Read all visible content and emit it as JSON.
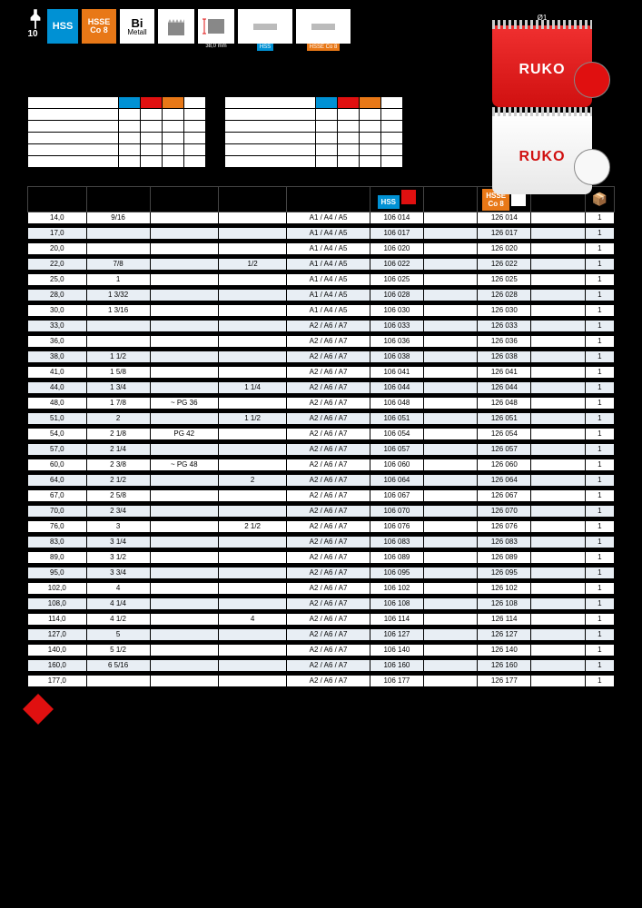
{
  "page_number": "10",
  "badges": {
    "hss": "HSS",
    "hsse_l1": "HSSE",
    "hsse_l2": "Co 8",
    "bi_l1": "Bi",
    "bi_l2": "Metall",
    "depth": "38,0 mm"
  },
  "product": {
    "brand": "RUKO",
    "dim_label": "Ø1"
  },
  "headers": {
    "hss": "HSS",
    "hsse_l1": "HSSE",
    "hsse_l2": "Co 8"
  },
  "colors": {
    "hss_blue": "#0091d4",
    "hsse_orange": "#e87817",
    "ruko_red": "#e01010",
    "row_alt": "#e8eef4",
    "black": "#000000",
    "white": "#ffffff"
  },
  "rows": [
    {
      "mm": "14,0",
      "inch": "9/16",
      "pg": "",
      "iso": "",
      "arbor": "A1 / A4 / A5",
      "art1": "106 014",
      "art2": "126 014",
      "pkg": "1"
    },
    {
      "mm": "17,0",
      "inch": "",
      "pg": "",
      "iso": "",
      "arbor": "A1 / A4 / A5",
      "art1": "106 017",
      "art2": "126 017",
      "pkg": "1"
    },
    {
      "mm": "20,0",
      "inch": "",
      "pg": "",
      "iso": "",
      "arbor": "A1 / A4 / A5",
      "art1": "106 020",
      "art2": "126 020",
      "pkg": "1"
    },
    {
      "mm": "22,0",
      "inch": "7/8",
      "pg": "",
      "iso": "1/2",
      "arbor": "A1 / A4 / A5",
      "art1": "106 022",
      "art2": "126 022",
      "pkg": "1"
    },
    {
      "mm": "25,0",
      "inch": "1",
      "pg": "",
      "iso": "",
      "arbor": "A1 / A4 / A5",
      "art1": "106 025",
      "art2": "126 025",
      "pkg": "1"
    },
    {
      "mm": "28,0",
      "inch": "1 3/32",
      "pg": "",
      "iso": "",
      "arbor": "A1 / A4 / A5",
      "art1": "106 028",
      "art2": "126 028",
      "pkg": "1"
    },
    {
      "mm": "30,0",
      "inch": "1 3/16",
      "pg": "",
      "iso": "",
      "arbor": "A1 / A4 / A5",
      "art1": "106 030",
      "art2": "126 030",
      "pkg": "1"
    },
    {
      "mm": "33,0",
      "inch": "",
      "pg": "",
      "iso": "",
      "arbor": "A2 / A6 / A7",
      "art1": "106 033",
      "art2": "126 033",
      "pkg": "1"
    },
    {
      "mm": "36,0",
      "inch": "",
      "pg": "",
      "iso": "",
      "arbor": "A2 / A6 / A7",
      "art1": "106 036",
      "art2": "126 036",
      "pkg": "1"
    },
    {
      "mm": "38,0",
      "inch": "1 1/2",
      "pg": "",
      "iso": "",
      "arbor": "A2 / A6 / A7",
      "art1": "106 038",
      "art2": "126 038",
      "pkg": "1"
    },
    {
      "mm": "41,0",
      "inch": "1 5/8",
      "pg": "",
      "iso": "",
      "arbor": "A2 / A6 / A7",
      "art1": "106 041",
      "art2": "126 041",
      "pkg": "1"
    },
    {
      "mm": "44,0",
      "inch": "1 3/4",
      "pg": "",
      "iso": "1 1/4",
      "arbor": "A2 / A6 / A7",
      "art1": "106 044",
      "art2": "126 044",
      "pkg": "1"
    },
    {
      "mm": "48,0",
      "inch": "1 7/8",
      "pg": "~ PG 36",
      "iso": "",
      "arbor": "A2 / A6 / A7",
      "art1": "106 048",
      "art2": "126 048",
      "pkg": "1"
    },
    {
      "mm": "51,0",
      "inch": "2",
      "pg": "",
      "iso": "1 1/2",
      "arbor": "A2 / A6 / A7",
      "art1": "106 051",
      "art2": "126 051",
      "pkg": "1"
    },
    {
      "mm": "54,0",
      "inch": "2 1/8",
      "pg": "PG 42",
      "iso": "",
      "arbor": "A2 / A6 / A7",
      "art1": "106 054",
      "art2": "126 054",
      "pkg": "1"
    },
    {
      "mm": "57,0",
      "inch": "2 1/4",
      "pg": "",
      "iso": "",
      "arbor": "A2 / A6 / A7",
      "art1": "106 057",
      "art2": "126 057",
      "pkg": "1"
    },
    {
      "mm": "60,0",
      "inch": "2 3/8",
      "pg": "~ PG 48",
      "iso": "",
      "arbor": "A2 / A6 / A7",
      "art1": "106 060",
      "art2": "126 060",
      "pkg": "1"
    },
    {
      "mm": "64,0",
      "inch": "2 1/2",
      "pg": "",
      "iso": "2",
      "arbor": "A2 / A6 / A7",
      "art1": "106 064",
      "art2": "126 064",
      "pkg": "1"
    },
    {
      "mm": "67,0",
      "inch": "2 5/8",
      "pg": "",
      "iso": "",
      "arbor": "A2 / A6 / A7",
      "art1": "106 067",
      "art2": "126 067",
      "pkg": "1"
    },
    {
      "mm": "70,0",
      "inch": "2 3/4",
      "pg": "",
      "iso": "",
      "arbor": "A2 / A6 / A7",
      "art1": "106 070",
      "art2": "126 070",
      "pkg": "1"
    },
    {
      "mm": "76,0",
      "inch": "3",
      "pg": "",
      "iso": "2 1/2",
      "arbor": "A2 / A6 / A7",
      "art1": "106 076",
      "art2": "126 076",
      "pkg": "1"
    },
    {
      "mm": "83,0",
      "inch": "3 1/4",
      "pg": "",
      "iso": "",
      "arbor": "A2 / A6 / A7",
      "art1": "106 083",
      "art2": "126 083",
      "pkg": "1"
    },
    {
      "mm": "89,0",
      "inch": "3 1/2",
      "pg": "",
      "iso": "",
      "arbor": "A2 / A6 / A7",
      "art1": "106 089",
      "art2": "126 089",
      "pkg": "1"
    },
    {
      "mm": "95,0",
      "inch": "3 3/4",
      "pg": "",
      "iso": "",
      "arbor": "A2 / A6 / A7",
      "art1": "106 095",
      "art2": "126 095",
      "pkg": "1"
    },
    {
      "mm": "102,0",
      "inch": "4",
      "pg": "",
      "iso": "",
      "arbor": "A2 / A6 / A7",
      "art1": "106 102",
      "art2": "126 102",
      "pkg": "1"
    },
    {
      "mm": "108,0",
      "inch": "4 1/4",
      "pg": "",
      "iso": "",
      "arbor": "A2 / A6 / A7",
      "art1": "106 108",
      "art2": "126 108",
      "pkg": "1"
    },
    {
      "mm": "114,0",
      "inch": "4 1/2",
      "pg": "",
      "iso": "4",
      "arbor": "A2 / A6 / A7",
      "art1": "106 114",
      "art2": "126 114",
      "pkg": "1"
    },
    {
      "mm": "127,0",
      "inch": "5",
      "pg": "",
      "iso": "",
      "arbor": "A2 / A6 / A7",
      "art1": "106 127",
      "art2": "126 127",
      "pkg": "1"
    },
    {
      "mm": "140,0",
      "inch": "5 1/2",
      "pg": "",
      "iso": "",
      "arbor": "A2 / A6 / A7",
      "art1": "106 140",
      "art2": "126 140",
      "pkg": "1"
    },
    {
      "mm": "160,0",
      "inch": "6 5/16",
      "pg": "",
      "iso": "",
      "arbor": "A2 / A6 / A7",
      "art1": "106 160",
      "art2": "126 160",
      "pkg": "1"
    },
    {
      "mm": "177,0",
      "inch": "",
      "pg": "",
      "iso": "",
      "arbor": "A2 / A6 / A7",
      "art1": "106 177",
      "art2": "126 177",
      "pkg": "1"
    }
  ]
}
